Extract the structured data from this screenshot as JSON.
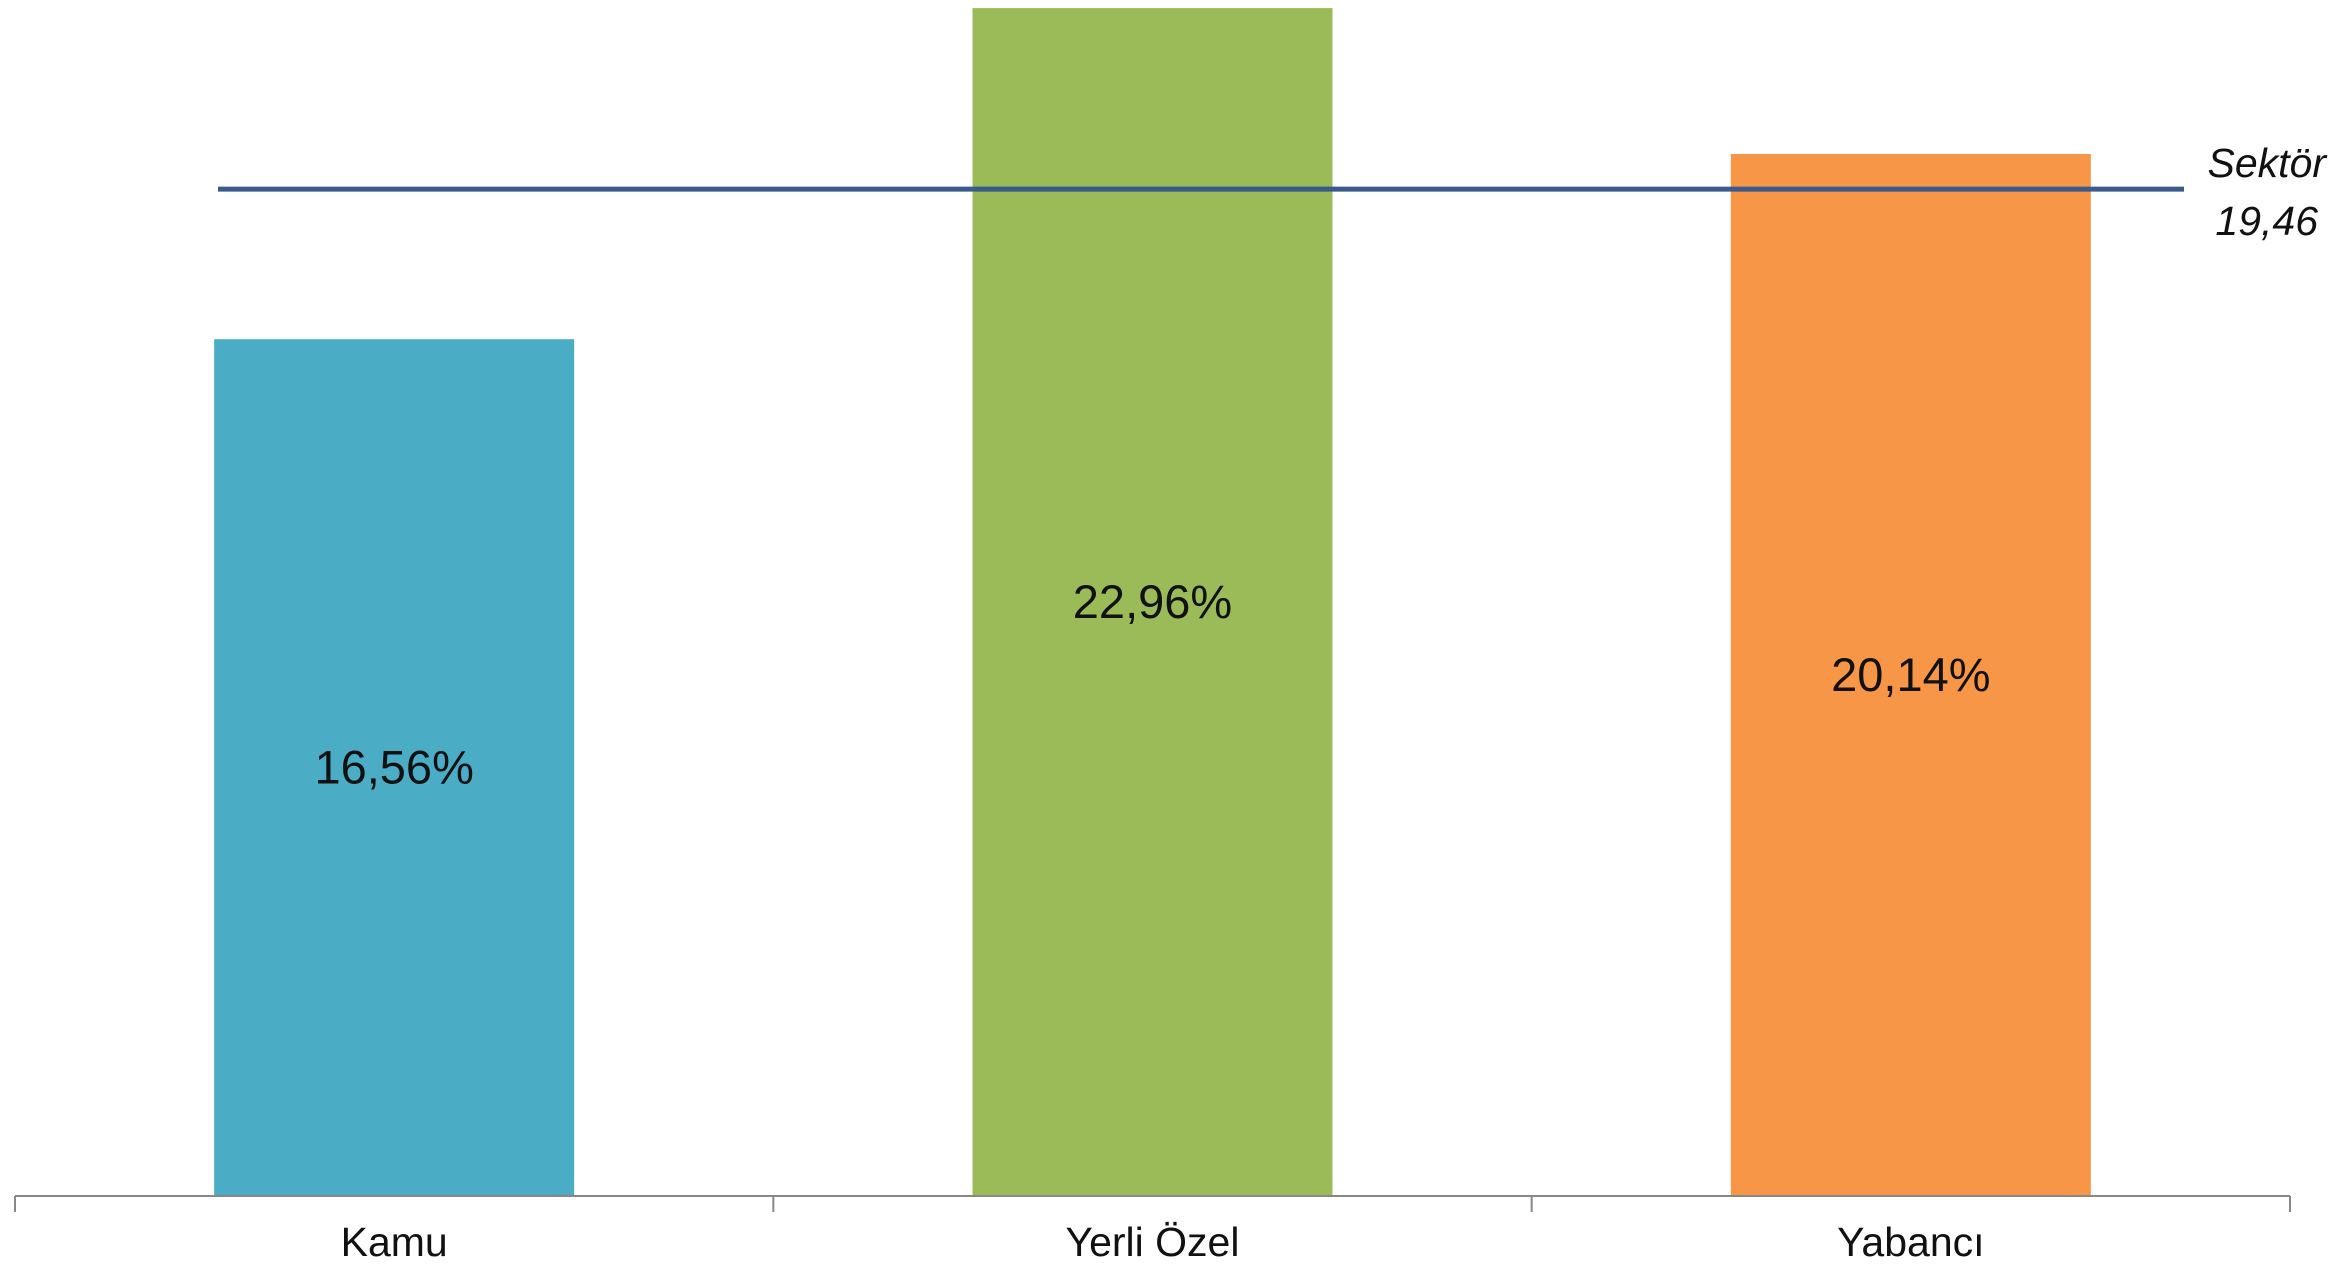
{
  "chart_data": {
    "type": "bar",
    "categories": [
      "Kamu",
      "Yerli Özel",
      "Yabancı"
    ],
    "values": [
      16.56,
      22.96,
      20.14
    ],
    "data_labels": [
      "16,56%",
      "22,96%",
      "20,14%"
    ],
    "colors": [
      "#4BACC6",
      "#9BBB59",
      "#F79646"
    ],
    "reference_line": {
      "value": 19.46,
      "name": "Sektör",
      "label": "19,46",
      "color": "#3A5A8C"
    },
    "title": "",
    "xlabel": "",
    "ylabel": "",
    "ylim": [
      0,
      23.0
    ],
    "grid": false,
    "legend": "none"
  }
}
